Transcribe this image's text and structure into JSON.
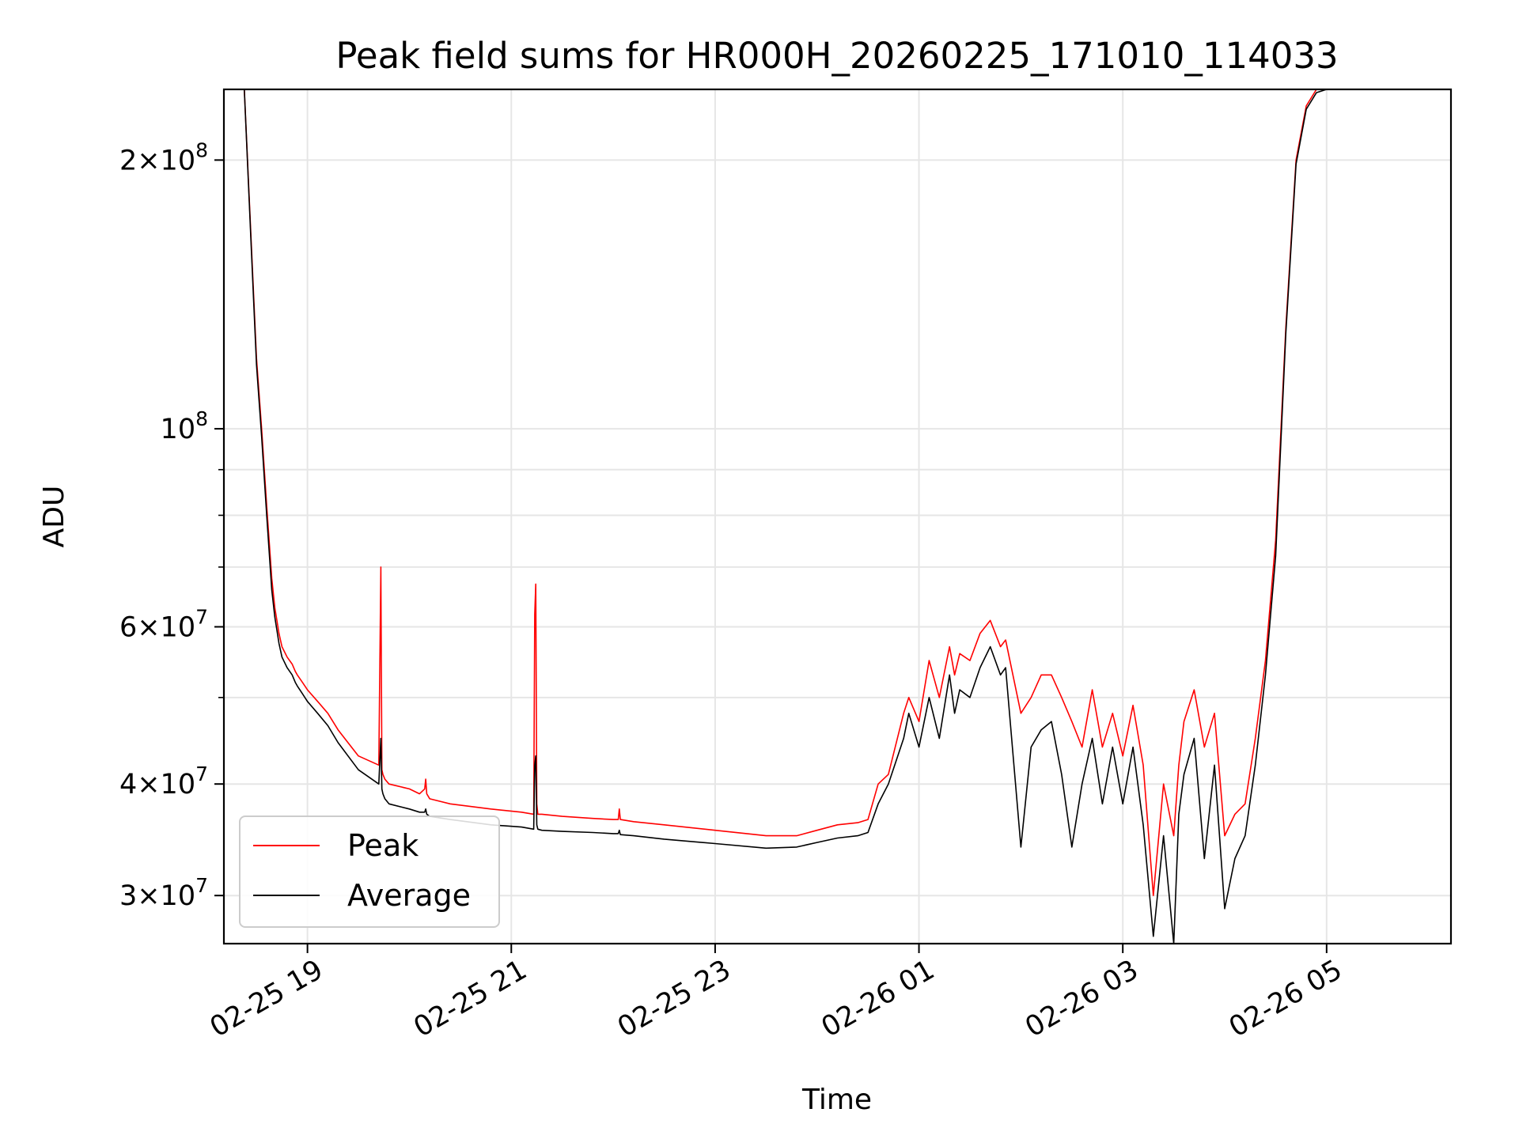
{
  "chart_data": {
    "type": "line",
    "title": "Peak field sums for HR000H_20260225_171010_114033",
    "xlabel": "Time",
    "ylabel": "ADU",
    "yscale": "log",
    "ylim": [
      26500000,
      240000000
    ],
    "xlim_hours": [
      -0.82,
      11.22
    ],
    "x_unit": "hours since 02-25 19:00",
    "x_ticks": [
      {
        "value": 0,
        "label": "02-25 19"
      },
      {
        "value": 2,
        "label": "02-25 21"
      },
      {
        "value": 4,
        "label": "02-25 23"
      },
      {
        "value": 6,
        "label": "02-26 01"
      },
      {
        "value": 8,
        "label": "02-26 03"
      },
      {
        "value": 10,
        "label": "02-26 05"
      }
    ],
    "y_ticks": [
      {
        "value": 30000000,
        "mant": "3",
        "exp": "7"
      },
      {
        "value": 40000000,
        "mant": "4",
        "exp": "7"
      },
      {
        "value": 60000000,
        "mant": "6",
        "exp": "7"
      },
      {
        "value": 100000000,
        "mant": "",
        "exp": "8"
      },
      {
        "value": 200000000,
        "mant": "2",
        "exp": "8"
      }
    ],
    "y_minor_ticks": [
      50000000,
      70000000,
      80000000,
      90000000
    ],
    "grid": true,
    "legend_position": "lower-left",
    "series": [
      {
        "name": "Peak",
        "color": "#ff0000",
        "x": [
          -0.82,
          -0.62,
          -0.55,
          -0.5,
          -0.45,
          -0.4,
          -0.35,
          -0.32,
          -0.3,
          -0.28,
          -0.25,
          -0.2,
          -0.15,
          -0.12,
          -0.1,
          -0.05,
          0,
          0.1,
          0.2,
          0.3,
          0.5,
          0.7,
          0.72,
          0.73,
          0.74,
          0.76,
          0.8,
          1.0,
          1.1,
          1.15,
          1.16,
          1.17,
          1.2,
          1.4,
          1.8,
          2.1,
          2.22,
          2.23,
          2.24,
          2.25,
          2.26,
          2.3,
          2.5,
          2.8,
          3.0,
          3.05,
          3.06,
          3.07,
          3.2,
          3.5,
          4.0,
          4.5,
          4.8,
          5.0,
          5.2,
          5.4,
          5.5,
          5.6,
          5.7,
          5.85,
          5.9,
          6.0,
          6.1,
          6.2,
          6.3,
          6.35,
          6.4,
          6.5,
          6.6,
          6.7,
          6.8,
          6.85,
          7.0,
          7.1,
          7.2,
          7.3,
          7.4,
          7.5,
          7.6,
          7.7,
          7.8,
          7.9,
          8.0,
          8.1,
          8.2,
          8.3,
          8.4,
          8.5,
          8.55,
          8.6,
          8.7,
          8.8,
          8.9,
          9.0,
          9.1,
          9.2,
          9.3,
          9.4,
          9.5,
          9.6,
          9.7,
          9.8,
          9.9,
          10.0,
          10.05
        ],
        "y": [
          240000000,
          240000000,
          160000000,
          120000000,
          100000000,
          82000000,
          68000000,
          63000000,
          61000000,
          59000000,
          57000000,
          55500000,
          54500000,
          53500000,
          53000000,
          52000000,
          51000000,
          49500000,
          48000000,
          46000000,
          43000000,
          42000000,
          70000000,
          41500000,
          41000000,
          40500000,
          40000000,
          39500000,
          39000000,
          39500000,
          40500000,
          39000000,
          38500000,
          38000000,
          37500000,
          37200000,
          37000000,
          62000000,
          67000000,
          38000000,
          37000000,
          37000000,
          36800000,
          36600000,
          36500000,
          36500000,
          37500000,
          36500000,
          36300000,
          36000000,
          35500000,
          35000000,
          35000000,
          35500000,
          36000000,
          36200000,
          36500000,
          40000000,
          41000000,
          48000000,
          50000000,
          47000000,
          55000000,
          50000000,
          57000000,
          53000000,
          56000000,
          55000000,
          59000000,
          61000000,
          57000000,
          58000000,
          48000000,
          50000000,
          53000000,
          53000000,
          50000000,
          47000000,
          44000000,
          51000000,
          44000000,
          48000000,
          43000000,
          49000000,
          42000000,
          30000000,
          40000000,
          35000000,
          42000000,
          47000000,
          51000000,
          44000000,
          48000000,
          35000000,
          37000000,
          38000000,
          45000000,
          55000000,
          75000000,
          130000000,
          200000000,
          230000000,
          240000000,
          240000000,
          240000000
        ]
      },
      {
        "name": "Average",
        "color": "#000000",
        "x": [
          -0.82,
          -0.62,
          -0.55,
          -0.5,
          -0.45,
          -0.4,
          -0.35,
          -0.32,
          -0.3,
          -0.28,
          -0.25,
          -0.2,
          -0.15,
          -0.12,
          -0.1,
          -0.05,
          0,
          0.1,
          0.2,
          0.3,
          0.5,
          0.7,
          0.72,
          0.73,
          0.74,
          0.76,
          0.8,
          1.0,
          1.1,
          1.15,
          1.16,
          1.17,
          1.2,
          1.4,
          1.8,
          2.1,
          2.22,
          2.23,
          2.24,
          2.25,
          2.26,
          2.3,
          2.5,
          2.8,
          3.0,
          3.05,
          3.06,
          3.07,
          3.2,
          3.5,
          4.0,
          4.5,
          4.8,
          5.0,
          5.2,
          5.4,
          5.5,
          5.6,
          5.7,
          5.85,
          5.9,
          6.0,
          6.1,
          6.2,
          6.3,
          6.35,
          6.4,
          6.5,
          6.6,
          6.7,
          6.8,
          6.85,
          7.0,
          7.1,
          7.2,
          7.3,
          7.4,
          7.5,
          7.6,
          7.7,
          7.8,
          7.9,
          8.0,
          8.1,
          8.2,
          8.3,
          8.4,
          8.5,
          8.55,
          8.6,
          8.7,
          8.8,
          8.9,
          9.0,
          9.1,
          9.2,
          9.3,
          9.4,
          9.5,
          9.6,
          9.7,
          9.8,
          9.9,
          10.0,
          10.05
        ],
        "y": [
          240000000,
          240000000,
          158000000,
          118000000,
          98000000,
          80000000,
          66000000,
          61500000,
          59500000,
          57500000,
          55500000,
          54000000,
          53000000,
          52000000,
          51500000,
          50500000,
          49500000,
          48000000,
          46500000,
          44500000,
          41500000,
          40000000,
          45000000,
          39500000,
          39000000,
          38500000,
          38000000,
          37500000,
          37200000,
          37200000,
          37500000,
          37000000,
          36800000,
          36500000,
          36000000,
          35800000,
          35600000,
          42000000,
          43000000,
          36000000,
          35600000,
          35500000,
          35400000,
          35300000,
          35200000,
          35200000,
          35500000,
          35100000,
          35000000,
          34700000,
          34300000,
          33900000,
          34000000,
          34400000,
          34800000,
          35000000,
          35300000,
          38000000,
          40000000,
          45000000,
          48000000,
          44000000,
          50000000,
          45000000,
          53000000,
          48000000,
          51000000,
          50000000,
          54000000,
          57000000,
          53000000,
          54000000,
          34000000,
          44000000,
          46000000,
          47000000,
          41000000,
          34000000,
          40000000,
          45000000,
          38000000,
          44000000,
          38000000,
          44000000,
          36000000,
          27000000,
          35000000,
          26500000,
          37000000,
          41000000,
          45000000,
          33000000,
          42000000,
          29000000,
          33000000,
          35000000,
          42000000,
          53000000,
          72000000,
          128000000,
          198000000,
          228000000,
          238000000,
          240000000,
          240000000
        ]
      }
    ]
  }
}
